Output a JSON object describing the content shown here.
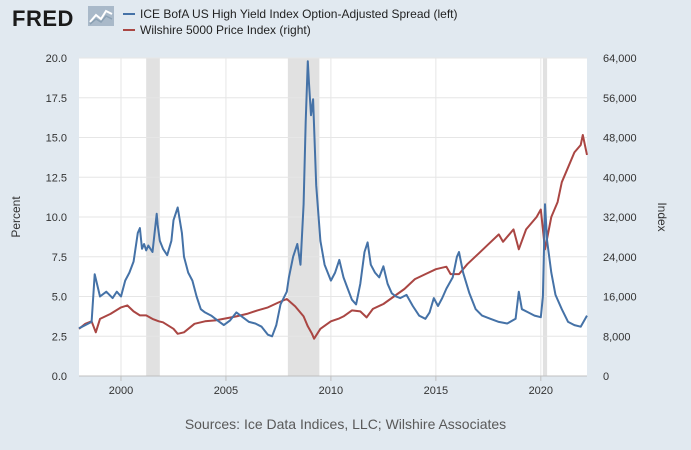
{
  "header": {
    "logo_text": "FRED",
    "logo_icon": "fred-line-chart-icon"
  },
  "footer": {
    "source": "Sources: Ice Data Indices, LLC; Wilshire Associates"
  },
  "colors": {
    "left_series": "#4572a7",
    "right_series": "#aa4643",
    "plot_bg": "#ffffff",
    "recession": "#e1e1e1",
    "page_bg": "#e1e9f0"
  },
  "chart_data": {
    "type": "line",
    "title": "",
    "xlabel": "",
    "ylabel_left": "Percent",
    "ylabel_right": "Index",
    "xlim": [
      1998.0,
      2022.2
    ],
    "ylim_left": [
      0,
      20
    ],
    "ylim_right": [
      0,
      64000
    ],
    "x_ticks": [
      2000,
      2005,
      2010,
      2015,
      2020
    ],
    "x_tick_labels": [
      "2000",
      "2005",
      "2010",
      "2015",
      "2020"
    ],
    "y_left_ticks": [
      0,
      2.5,
      5,
      7.5,
      10,
      12.5,
      15,
      17.5,
      20
    ],
    "y_left_tick_labels": [
      "0.0",
      "2.5",
      "5.0",
      "7.5",
      "10.0",
      "12.5",
      "15.0",
      "17.5",
      "20.0"
    ],
    "y_right_ticks": [
      0,
      8000,
      16000,
      24000,
      32000,
      40000,
      48000,
      56000,
      64000
    ],
    "y_right_tick_labels": [
      "0",
      "8,000",
      "16,000",
      "24,000",
      "32,000",
      "40,000",
      "48,000",
      "56,000",
      "64,000"
    ],
    "grid": true,
    "legend_position": "top",
    "recessions": [
      [
        2001.2,
        2001.85
      ],
      [
        2007.95,
        2009.45
      ],
      [
        2020.1,
        2020.3
      ]
    ],
    "series": [
      {
        "name": "ICE BofA US High Yield Index Option-Adjusted Spread (left)",
        "axis": "left",
        "x": [
          1998.0,
          1998.3,
          1998.6,
          1998.75,
          1999.0,
          1999.3,
          1999.6,
          1999.8,
          2000.0,
          2000.2,
          2000.4,
          2000.6,
          2000.8,
          2000.9,
          2001.0,
          2001.1,
          2001.2,
          2001.3,
          2001.5,
          2001.7,
          2001.75,
          2001.85,
          2002.0,
          2002.2,
          2002.4,
          2002.5,
          2002.7,
          2002.9,
          2003.0,
          2003.2,
          2003.4,
          2003.6,
          2003.8,
          2004.0,
          2004.3,
          2004.6,
          2004.9,
          2005.2,
          2005.5,
          2005.8,
          2006.1,
          2006.4,
          2006.7,
          2007.0,
          2007.2,
          2007.4,
          2007.6,
          2007.9,
          2008.0,
          2008.2,
          2008.4,
          2008.55,
          2008.7,
          2008.8,
          2008.9,
          2008.95,
          2009.05,
          2009.15,
          2009.3,
          2009.5,
          2009.7,
          2010.0,
          2010.2,
          2010.4,
          2010.6,
          2010.8,
          2011.0,
          2011.2,
          2011.4,
          2011.6,
          2011.75,
          2011.9,
          2012.1,
          2012.3,
          2012.5,
          2012.7,
          2012.9,
          2013.1,
          2013.3,
          2013.6,
          2013.9,
          2014.2,
          2014.5,
          2014.7,
          2014.9,
          2015.1,
          2015.3,
          2015.5,
          2015.8,
          2016.0,
          2016.1,
          2016.3,
          2016.6,
          2016.9,
          2017.2,
          2017.6,
          2018.0,
          2018.4,
          2018.8,
          2018.95,
          2019.1,
          2019.4,
          2019.7,
          2020.0,
          2020.1,
          2020.2,
          2020.3,
          2020.5,
          2020.7,
          2021.0,
          2021.3,
          2021.6,
          2021.9,
          2022.2
        ],
        "values": [
          3.0,
          3.2,
          3.4,
          6.4,
          5.0,
          5.3,
          4.9,
          5.3,
          5.0,
          6.0,
          6.5,
          7.2,
          9.0,
          9.3,
          8.0,
          8.3,
          7.9,
          8.2,
          7.8,
          10.2,
          9.5,
          8.5,
          8.0,
          7.6,
          8.5,
          9.8,
          10.6,
          9.0,
          7.5,
          6.5,
          6.0,
          5.0,
          4.2,
          4.0,
          3.8,
          3.5,
          3.2,
          3.5,
          4.0,
          3.7,
          3.4,
          3.3,
          3.1,
          2.6,
          2.5,
          3.2,
          4.5,
          5.3,
          6.2,
          7.5,
          8.3,
          7.0,
          10.8,
          16.0,
          19.8,
          18.5,
          16.4,
          17.4,
          12.0,
          8.5,
          7.0,
          6.0,
          6.5,
          7.3,
          6.2,
          5.5,
          4.8,
          4.5,
          5.8,
          7.8,
          8.4,
          7.0,
          6.5,
          6.2,
          6.9,
          5.8,
          5.2,
          5.0,
          4.9,
          5.1,
          4.4,
          3.8,
          3.6,
          4.0,
          4.9,
          4.4,
          4.9,
          5.5,
          6.2,
          7.5,
          7.8,
          6.5,
          5.2,
          4.2,
          3.8,
          3.6,
          3.4,
          3.3,
          3.6,
          5.3,
          4.2,
          4.0,
          3.8,
          3.7,
          5.0,
          10.8,
          8.5,
          6.5,
          5.1,
          4.2,
          3.4,
          3.2,
          3.1,
          3.8
        ]
      },
      {
        "name": "Wilshire 5000 Price Index (right)",
        "axis": "right",
        "x": [
          1998.0,
          1998.3,
          1998.6,
          1998.8,
          1999.0,
          1999.5,
          2000.0,
          2000.3,
          2000.6,
          2000.9,
          2001.2,
          2001.5,
          2001.8,
          2002.0,
          2002.5,
          2002.7,
          2003.0,
          2003.5,
          2004.0,
          2004.5,
          2005.0,
          2005.5,
          2006.0,
          2006.5,
          2007.0,
          2007.5,
          2007.9,
          2008.3,
          2008.7,
          2008.9,
          2009.1,
          2009.2,
          2009.5,
          2010.0,
          2010.4,
          2010.6,
          2011.0,
          2011.4,
          2011.7,
          2012.0,
          2012.5,
          2013.0,
          2013.5,
          2014.0,
          2014.5,
          2015.0,
          2015.5,
          2015.7,
          2016.1,
          2016.5,
          2017.0,
          2017.5,
          2018.0,
          2018.2,
          2018.7,
          2018.95,
          2019.3,
          2019.8,
          2020.0,
          2020.2,
          2020.5,
          2020.8,
          2021.0,
          2021.3,
          2021.6,
          2021.9,
          2022.0,
          2022.2
        ],
        "values": [
          9500,
          10500,
          11000,
          8800,
          11500,
          12500,
          13800,
          14200,
          13000,
          12200,
          12200,
          11500,
          11000,
          10800,
          9500,
          8500,
          8800,
          10500,
          11000,
          11200,
          11600,
          12000,
          12500,
          13200,
          13800,
          14800,
          15500,
          14000,
          12000,
          10000,
          8500,
          7500,
          9500,
          11000,
          11600,
          12000,
          13200,
          13000,
          11800,
          13500,
          14500,
          16000,
          17500,
          19500,
          20500,
          21500,
          22000,
          20500,
          20500,
          22500,
          24500,
          26500,
          28500,
          27000,
          29500,
          25500,
          29500,
          32000,
          33500,
          25500,
          32000,
          35000,
          39000,
          42000,
          45000,
          46500,
          48500,
          44500
        ]
      }
    ]
  }
}
